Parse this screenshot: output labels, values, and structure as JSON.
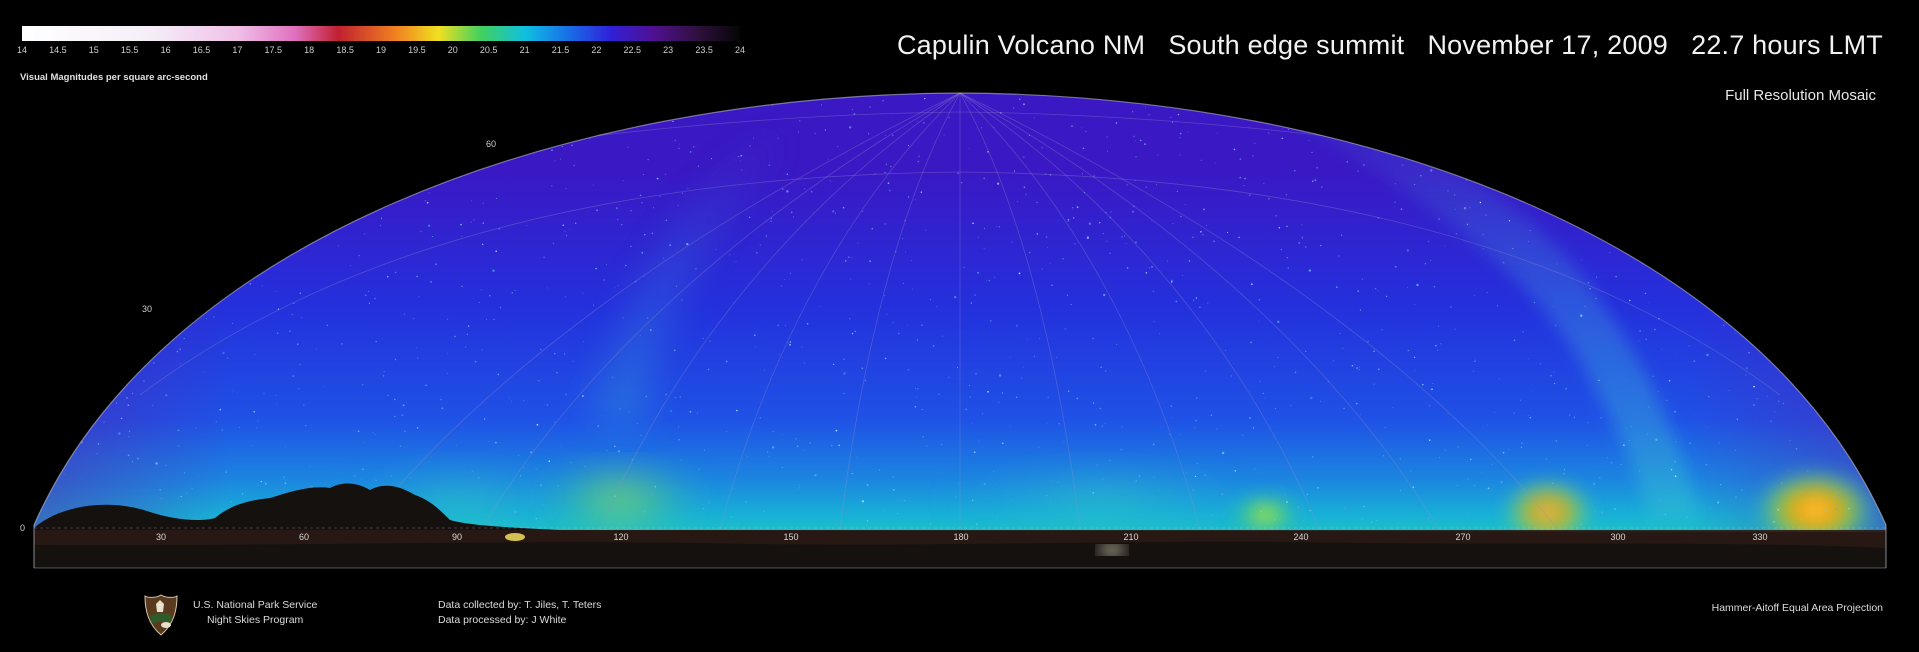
{
  "title": "Capulin Volcano NM   South edge summit   November 17, 2009   22.7 hours LMT",
  "subtitle": "Full Resolution Mosaic",
  "colorbar": {
    "label": "Visual Magnitudes per square arc-second",
    "ticks": [
      "14",
      "14.5",
      "15",
      "15.5",
      "16",
      "16.5",
      "17",
      "17.5",
      "18",
      "18.5",
      "19",
      "19.5",
      "20",
      "20.5",
      "21",
      "21.5",
      "22",
      "22.5",
      "23",
      "23.5",
      "24"
    ]
  },
  "sky_map": {
    "altitude_labels": [
      "0",
      "30",
      "60"
    ],
    "azimuth_labels": [
      "30",
      "60",
      "90",
      "120",
      "150",
      "180",
      "210",
      "240",
      "270",
      "300",
      "330"
    ]
  },
  "footer": {
    "agency_line1": "U.S. National Park Service",
    "agency_line2": "Night Skies Program",
    "credit_collected": "Data collected by: T. Jiles, T. Teters",
    "credit_processed": "Data processed by: J White",
    "projection": "Hammer-Aitoff Equal Area Projection"
  },
  "colors": {
    "sky_zenith": "#2e1fc9",
    "sky_mid": "#2440e0",
    "horizon_glow": "#17a8d8",
    "light_dome": "#f0b020"
  },
  "icons": {
    "logo": "nps-arrowhead-logo"
  }
}
